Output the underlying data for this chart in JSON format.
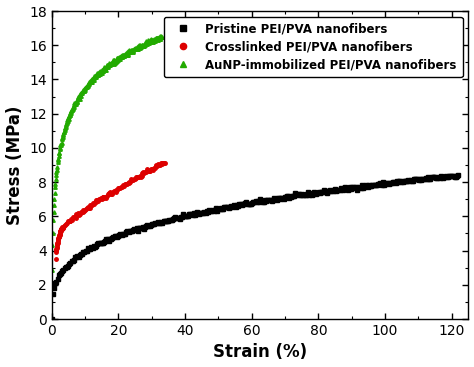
{
  "title": "",
  "xlabel": "Strain (%)",
  "ylabel": "Stress (MPa)",
  "xlim": [
    0,
    125
  ],
  "ylim": [
    0,
    18
  ],
  "xticks": [
    0,
    20,
    40,
    60,
    80,
    100,
    120
  ],
  "yticks": [
    0,
    2,
    4,
    6,
    8,
    10,
    12,
    14,
    16,
    18
  ],
  "legend": [
    {
      "label": "Pristine PEI/PVA nanofibers",
      "color": "#000000",
      "marker": "s"
    },
    {
      "label": "Crosslinked PEI/PVA nanofibers",
      "color": "#dd0000",
      "marker": "o"
    },
    {
      "label": "AuNP-immobilized PEI/PVA nanofibers",
      "color": "#22aa00",
      "marker": "^"
    }
  ],
  "background_color": "#ffffff",
  "markersize": 2.5,
  "fontsize_label": 12,
  "fontsize_tick": 10,
  "fontsize_legend": 8.5
}
